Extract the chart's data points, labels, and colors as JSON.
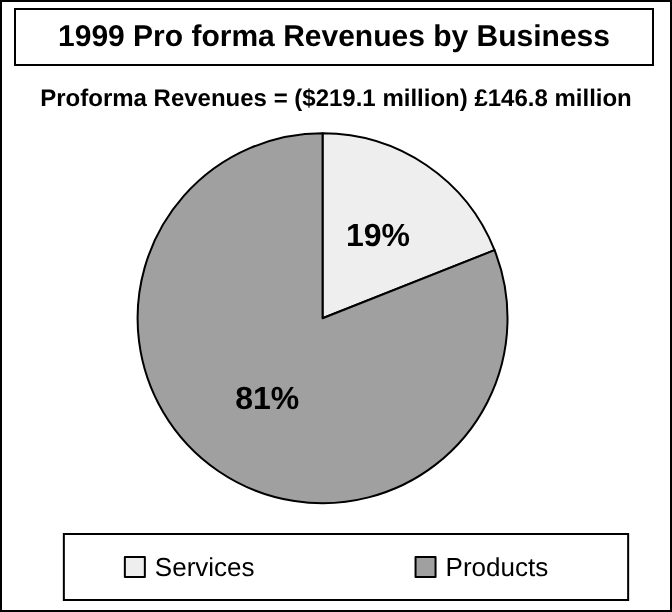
{
  "chart_data": {
    "type": "pie",
    "title": "1999 Pro forma Revenues by Business",
    "subtitle": "Proforma Revenues = ($219.1 million) £146.8 million",
    "categories": [
      "Services",
      "Products"
    ],
    "values": [
      19,
      81
    ],
    "colors": [
      "#eeeeee",
      "#a0a0a0"
    ],
    "value_labels": [
      "19%",
      "81%"
    ],
    "legend": "bottom"
  }
}
